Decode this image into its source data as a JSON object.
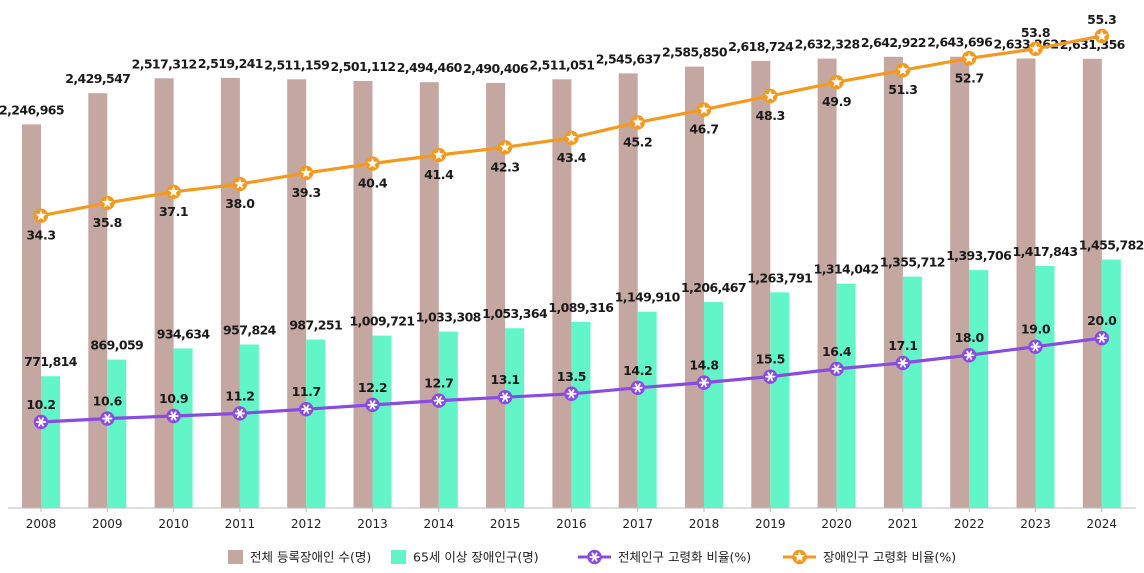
{
  "chart_data": {
    "type": "bar+line",
    "categories": [
      "2008",
      "2009",
      "2010",
      "2011",
      "2012",
      "2013",
      "2014",
      "2015",
      "2016",
      "2017",
      "2018",
      "2019",
      "2020",
      "2021",
      "2022",
      "2023",
      "2024"
    ],
    "bar_series": [
      {
        "name": "전체 등록장애인 수(명)",
        "color": "#c4a7a0",
        "values": [
          2246965,
          2429547,
          2517312,
          2519241,
          2511159,
          2501112,
          2494460,
          2490406,
          2511051,
          2545637,
          2585850,
          2618724,
          2632328,
          2642922,
          2643696,
          2633262,
          2631356
        ],
        "labels": [
          "2,246,965",
          "2,429,547",
          "2,517,312",
          "2,519,241",
          "2,511,159",
          "2,501,112",
          "2,494,460",
          "2,490,406",
          "2,511,051",
          "2,545,637",
          "2,585,850",
          "2,618,724",
          "2,632,328",
          "2,642,922",
          "2,643,696",
          "2,633,262",
          "2,631,356"
        ]
      },
      {
        "name": "65세 이상 장애인구(명)",
        "color": "#62f5c8",
        "values": [
          771814,
          869059,
          934634,
          957824,
          987251,
          1009721,
          1033308,
          1053364,
          1089316,
          1149910,
          1206467,
          1263791,
          1314042,
          1355712,
          1393706,
          1417843,
          1455782
        ],
        "labels": [
          "771,814",
          "869,059",
          "934,634",
          "957,824",
          "987,251",
          "1,009,721",
          "1,033,308",
          "1,053,364",
          "1,089,316",
          "1,149,910",
          "1,206,467",
          "1,263,791",
          "1,314,042",
          "1,355,712",
          "1,393,706",
          "1,417,843",
          "1,455,782"
        ]
      }
    ],
    "line_series": [
      {
        "name": "전체인구 고령화 비율(%)",
        "color": "#8a4ce0",
        "marker": "asterisk",
        "values": [
          10.2,
          10.6,
          10.9,
          11.2,
          11.7,
          12.2,
          12.7,
          13.1,
          13.5,
          14.2,
          14.8,
          15.5,
          16.4,
          17.1,
          18.0,
          19.0,
          20.0
        ],
        "labels": [
          "10.2",
          "10.6",
          "10.9",
          "11.2",
          "11.7",
          "12.2",
          "12.7",
          "13.1",
          "13.5",
          "14.2",
          "14.8",
          "15.5",
          "16.4",
          "17.1",
          "18.0",
          "19.0",
          "20.0"
        ]
      },
      {
        "name": "장애인구 고령화 비율(%)",
        "color": "#f39a1e",
        "marker": "star",
        "values": [
          34.3,
          35.8,
          37.1,
          38.0,
          39.3,
          40.4,
          41.4,
          42.3,
          43.4,
          45.2,
          46.7,
          48.3,
          49.9,
          51.3,
          52.7,
          53.8,
          55.3
        ],
        "labels": [
          "34.3",
          "35.8",
          "37.1",
          "38.0",
          "39.3",
          "40.4",
          "41.4",
          "42.3",
          "43.4",
          "45.2",
          "46.7",
          "48.3",
          "49.9",
          "51.3",
          "52.7",
          "53.8",
          "55.3"
        ]
      }
    ],
    "bar_ylim": [
      0,
      2800000
    ],
    "line_ylim": [
      0,
      58
    ],
    "grid": false,
    "legend_position": "bottom-center"
  }
}
